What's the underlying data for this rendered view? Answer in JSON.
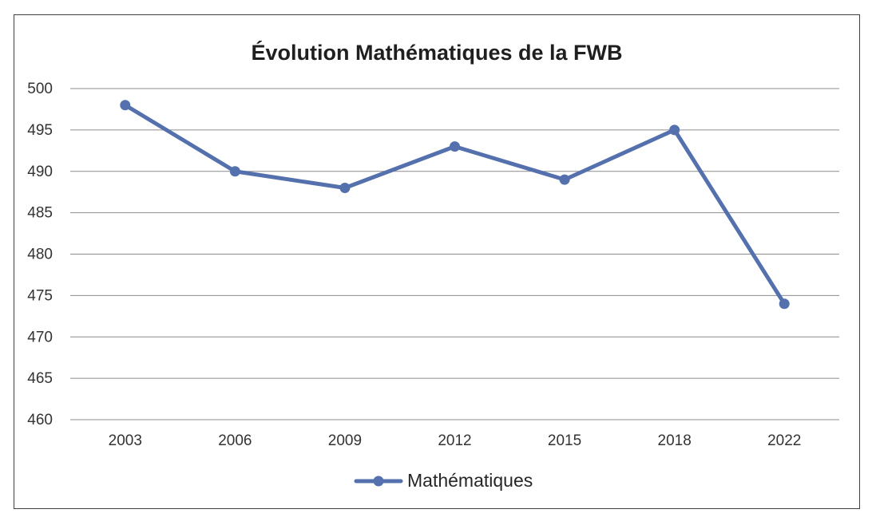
{
  "chart_data": {
    "type": "line",
    "title": "Évolution Mathématiques de la FWB",
    "xlabel": "",
    "ylabel": "",
    "categories": [
      "2003",
      "2006",
      "2009",
      "2012",
      "2015",
      "2018",
      "2022"
    ],
    "series": [
      {
        "name": "Mathématiques",
        "values": [
          498,
          490,
          488,
          493,
          489,
          495,
          474
        ],
        "color": "#5470ad"
      }
    ],
    "ylim": [
      460,
      500
    ],
    "ystep": 5,
    "yticks": [
      "460",
      "465",
      "470",
      "475",
      "480",
      "485",
      "490",
      "495",
      "500"
    ],
    "grid": true,
    "legend_position": "bottom"
  }
}
